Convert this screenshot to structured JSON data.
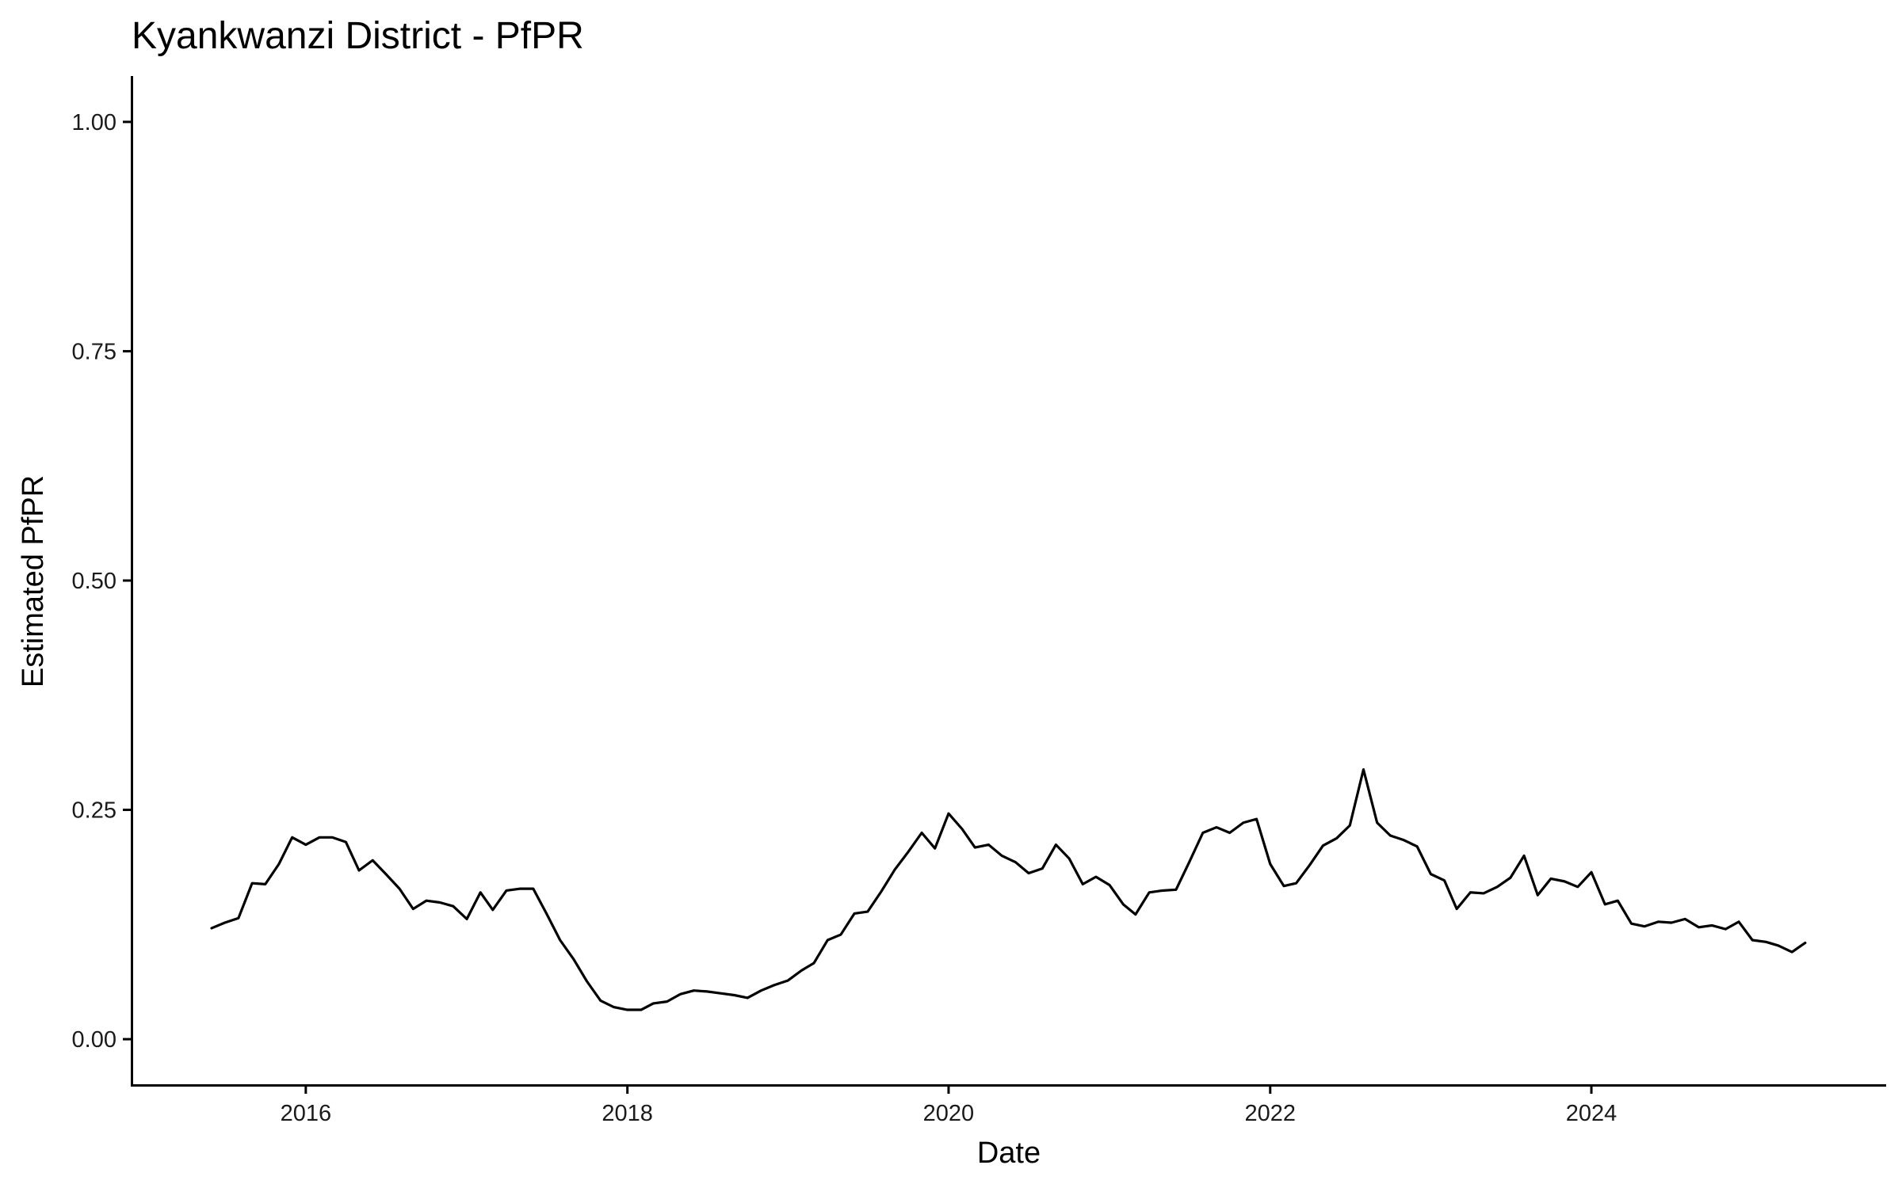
{
  "chart_data": {
    "type": "line",
    "title": "Kyankwanzi District - PfPR",
    "xlabel": "Date",
    "ylabel": "Estimated PfPR",
    "xlim": [
      "2014-12-01",
      "2025-11-01"
    ],
    "ylim": [
      -0.05,
      1.05
    ],
    "x_ticks": [
      {
        "date": "2016-01-01",
        "label": "2016"
      },
      {
        "date": "2018-01-01",
        "label": "2018"
      },
      {
        "date": "2020-01-01",
        "label": "2020"
      },
      {
        "date": "2022-01-01",
        "label": "2022"
      },
      {
        "date": "2024-01-01",
        "label": "2024"
      }
    ],
    "y_ticks": [
      {
        "value": 0,
        "label": "0.00"
      },
      {
        "value": 0.25,
        "label": "0.25"
      },
      {
        "value": 0.5,
        "label": "0.50"
      },
      {
        "value": 0.75,
        "label": "0.75"
      },
      {
        "value": 1,
        "label": "1.00"
      }
    ],
    "grid": false,
    "legend": "none",
    "series": [
      {
        "color": "#000000",
        "x": [
          "2015-06-01",
          "2015-07-01",
          "2015-08-01",
          "2015-09-01",
          "2015-10-01",
          "2015-11-01",
          "2015-12-01",
          "2016-01-01",
          "2016-02-01",
          "2016-03-01",
          "2016-04-01",
          "2016-05-01",
          "2016-06-01",
          "2016-07-01",
          "2016-08-01",
          "2016-09-01",
          "2016-10-01",
          "2016-11-01",
          "2016-12-01",
          "2017-01-01",
          "2017-02-01",
          "2017-03-01",
          "2017-04-01",
          "2017-05-01",
          "2017-06-01",
          "2017-07-01",
          "2017-08-01",
          "2017-09-01",
          "2017-10-01",
          "2017-11-01",
          "2017-12-01",
          "2018-01-01",
          "2018-02-01",
          "2018-03-01",
          "2018-04-01",
          "2018-05-01",
          "2018-06-01",
          "2018-07-01",
          "2018-08-01",
          "2018-09-01",
          "2018-10-01",
          "2018-11-01",
          "2018-12-01",
          "2019-01-01",
          "2019-02-01",
          "2019-03-01",
          "2019-04-01",
          "2019-05-01",
          "2019-06-01",
          "2019-07-01",
          "2019-08-01",
          "2019-09-01",
          "2019-10-01",
          "2019-11-01",
          "2019-12-01",
          "2020-01-01",
          "2020-02-01",
          "2020-03-01",
          "2020-04-01",
          "2020-05-01",
          "2020-06-01",
          "2020-07-01",
          "2020-08-01",
          "2020-09-01",
          "2020-10-01",
          "2020-11-01",
          "2020-12-01",
          "2021-01-01",
          "2021-02-01",
          "2021-03-01",
          "2021-04-01",
          "2021-05-01",
          "2021-06-01",
          "2021-07-01",
          "2021-08-01",
          "2021-09-01",
          "2021-10-01",
          "2021-11-01",
          "2021-12-01",
          "2022-01-01",
          "2022-02-01",
          "2022-03-01",
          "2022-04-01",
          "2022-05-01",
          "2022-06-01",
          "2022-07-01",
          "2022-08-01",
          "2022-09-01",
          "2022-10-01",
          "2022-11-01",
          "2022-12-01",
          "2023-01-01",
          "2023-02-01",
          "2023-03-01",
          "2023-04-01",
          "2023-05-01",
          "2023-06-01",
          "2023-07-01",
          "2023-08-01",
          "2023-09-01",
          "2023-10-01",
          "2023-11-01",
          "2023-12-01",
          "2024-01-01",
          "2024-02-01",
          "2024-03-01",
          "2024-04-01",
          "2024-05-01",
          "2024-06-01",
          "2024-07-01",
          "2024-08-01",
          "2024-09-01",
          "2024-10-01",
          "2024-11-01",
          "2024-12-01",
          "2025-01-01",
          "2025-02-01",
          "2025-03-01",
          "2025-04-01",
          "2025-05-01"
        ],
        "y": [
          0.121,
          0.127,
          0.132,
          0.17,
          0.169,
          0.191,
          0.22,
          0.212,
          0.22,
          0.22,
          0.215,
          0.184,
          0.195,
          0.18,
          0.164,
          0.142,
          0.151,
          0.149,
          0.145,
          0.131,
          0.16,
          0.141,
          0.162,
          0.164,
          0.164,
          0.137,
          0.108,
          0.087,
          0.063,
          0.042,
          0.035,
          0.032,
          0.032,
          0.039,
          0.041,
          0.049,
          0.053,
          0.052,
          0.05,
          0.048,
          0.045,
          0.053,
          0.059,
          0.064,
          0.075,
          0.083,
          0.108,
          0.114,
          0.137,
          0.139,
          0.161,
          0.185,
          0.204,
          0.225,
          0.208,
          0.246,
          0.229,
          0.209,
          0.212,
          0.2,
          0.193,
          0.181,
          0.186,
          0.212,
          0.197,
          0.169,
          0.177,
          0.168,
          0.147,
          0.136,
          0.16,
          0.162,
          0.163,
          0.193,
          0.225,
          0.231,
          0.225,
          0.236,
          0.24,
          0.191,
          0.167,
          0.17,
          0.19,
          0.211,
          0.219,
          0.233,
          0.294,
          0.236,
          0.222,
          0.217,
          0.21,
          0.18,
          0.173,
          0.142,
          0.16,
          0.159,
          0.166,
          0.176,
          0.2,
          0.157,
          0.175,
          0.172,
          0.166,
          0.182,
          0.147,
          0.151,
          0.126,
          0.123,
          0.128,
          0.127,
          0.131,
          0.122,
          0.124,
          0.12,
          0.128,
          0.108,
          0.106,
          0.102,
          0.095,
          0.105
        ]
      }
    ]
  }
}
